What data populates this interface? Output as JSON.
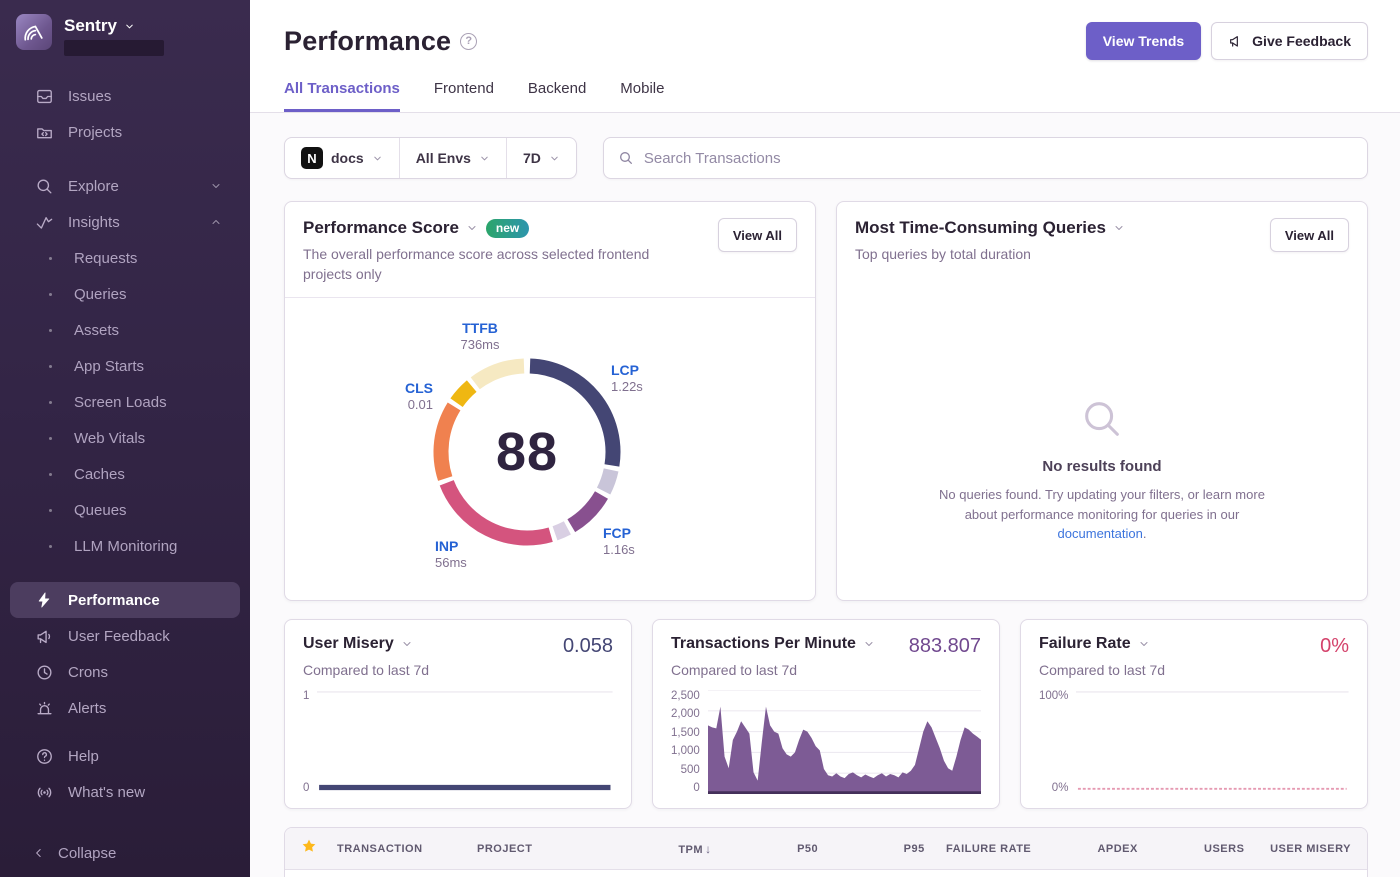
{
  "colors": {
    "accent_purple": "#6d5fc8",
    "sidebar_bg_top": "#3a2b4e",
    "sidebar_active_bg": "#4c3d5f",
    "link_blue": "#3c74dd",
    "metric_label_blue": "#2562d4",
    "star_gold": "#fdb81b",
    "badge_new_gradient": [
      "#2ba56a",
      "#2d95ad"
    ]
  },
  "sidebar": {
    "brand": "Sentry",
    "issues": "Issues",
    "projects": "Projects",
    "explore": "Explore",
    "insights": "Insights",
    "insights_children": [
      "Requests",
      "Queries",
      "Assets",
      "App Starts",
      "Screen Loads",
      "Web Vitals",
      "Caches",
      "Queues",
      "LLM Monitoring"
    ],
    "performance": "Performance",
    "user_feedback": "User Feedback",
    "crons": "Crons",
    "alerts": "Alerts",
    "help": "Help",
    "whats_new": "What's new",
    "collapse": "Collapse"
  },
  "header": {
    "title": "Performance",
    "view_trends": "View Trends",
    "give_feedback": "Give Feedback"
  },
  "tabs": [
    "All Transactions",
    "Frontend",
    "Backend",
    "Mobile"
  ],
  "active_tab": "All Transactions",
  "filters": {
    "project": "docs",
    "project_icon": "nextjs",
    "environment": "All Envs",
    "date_range": "7D",
    "search_placeholder": "Search Transactions"
  },
  "score_card": {
    "title": "Performance Score",
    "badge": "new",
    "description": "The overall performance score across selected frontend projects only",
    "view_all": "View All",
    "chart_data": {
      "type": "donut",
      "score": "88",
      "metrics": [
        {
          "name": "LCP",
          "value": "1.22s"
        },
        {
          "name": "FCP",
          "value": "1.16s"
        },
        {
          "name": "INP",
          "value": "56ms"
        },
        {
          "name": "CLS",
          "value": "0.01"
        },
        {
          "name": "TTFB",
          "value": "736ms"
        }
      ],
      "segments": [
        {
          "label": "LCP",
          "color": "#444674",
          "start": 2,
          "end": 99
        },
        {
          "label": "LCP-remainder",
          "color": "#c9c5d9",
          "start": 102,
          "end": 117
        },
        {
          "label": "FCP",
          "color": "#88508f",
          "start": 120,
          "end": 149
        },
        {
          "label": "FCP-remainder",
          "color": "#d9cfe3",
          "start": 152,
          "end": 161
        },
        {
          "label": "INP",
          "color": "#d4547e",
          "start": 164,
          "end": 249
        },
        {
          "label": "CLS",
          "color": "#f0814f",
          "start": 252,
          "end": 302
        },
        {
          "label": "TTFB",
          "color": "#efb712",
          "start": 305,
          "end": 320
        },
        {
          "label": "TTFB-remainder",
          "color": "#f6e9c2",
          "start": 323,
          "end": 358
        }
      ]
    }
  },
  "queries_card": {
    "title": "Most Time-Consuming Queries",
    "description": "Top queries by total duration",
    "view_all": "View All",
    "empty": {
      "title": "No results found",
      "body_before_link": "No queries found. Try updating your filters, or learn more about performance monitoring for queries in our ",
      "link": "documentation",
      "body_after_link": "."
    }
  },
  "misery_card": {
    "title": "User Misery",
    "value": "0.058",
    "subtitle": "Compared to last 7d",
    "chart_data": {
      "type": "line",
      "yticks": [
        "1",
        "0"
      ],
      "ylim": [
        0,
        1
      ],
      "current": 0.058,
      "color": "#444674"
    }
  },
  "tpm_card": {
    "title": "Transactions Per Minute",
    "value": "883.807",
    "subtitle": "Compared to last 7d",
    "chart_data": {
      "type": "area",
      "yticks": [
        "2,500",
        "2,000",
        "1,500",
        "1,000",
        "500",
        "0"
      ],
      "ylim": [
        0,
        2500
      ],
      "color": "#7d5b95",
      "baseline_color": "#44305a",
      "values": [
        1650,
        1600,
        1580,
        2100,
        900,
        620,
        1300,
        1500,
        1750,
        1600,
        1450,
        520,
        320,
        1250,
        2100,
        1650,
        1500,
        1450,
        1100,
        950,
        900,
        1000,
        1300,
        1550,
        1500,
        1350,
        1150,
        1050,
        600,
        450,
        420,
        500,
        420,
        380,
        480,
        520,
        450,
        400,
        470,
        420,
        380,
        450,
        500,
        420,
        480,
        450,
        400,
        520,
        480,
        560,
        700,
        1100,
        1500,
        1750,
        1600,
        1350,
        1100,
        800,
        620,
        560,
        900,
        1300,
        1600,
        1550,
        1450,
        1380,
        1300
      ]
    }
  },
  "failure_card": {
    "title": "Failure Rate",
    "value": "0%",
    "subtitle": "Compared to last 7d",
    "chart_data": {
      "type": "line",
      "yticks": [
        "100%",
        "0%"
      ],
      "ylim": [
        0,
        100
      ],
      "current": 0,
      "color": "#e59ab2"
    }
  },
  "table": {
    "columns": [
      "TRANSACTION",
      "PROJECT",
      "TPM",
      "P50",
      "P95",
      "FAILURE RATE",
      "APDEX",
      "USERS",
      "USER MISERY"
    ],
    "sorted_by": "TPM",
    "sort_direction": "desc",
    "sort_arrow": "↓"
  }
}
